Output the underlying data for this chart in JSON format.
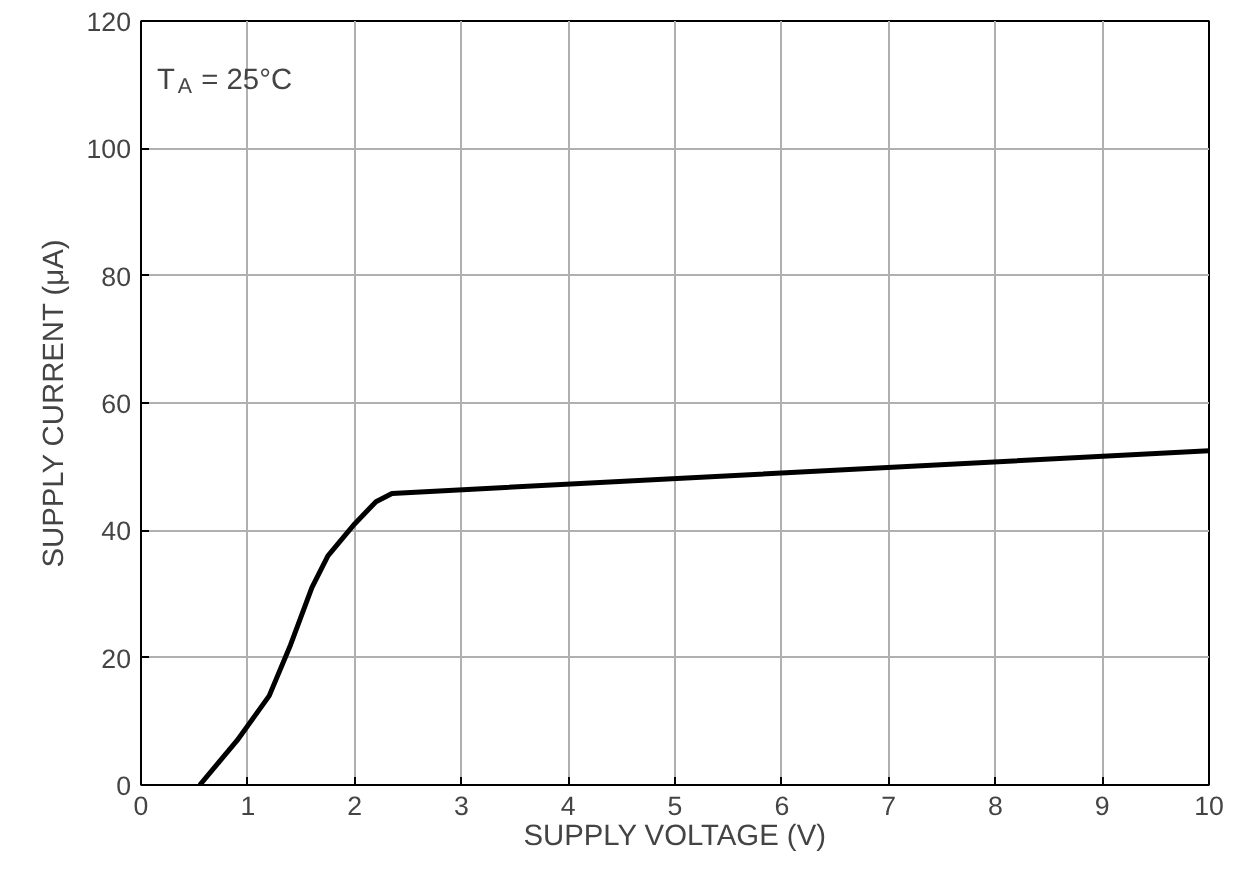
{
  "chart_data": {
    "type": "line",
    "xlabel": "SUPPLY VOLTAGE (V)",
    "ylabel": "SUPPLY CURRENT (μA)",
    "x": [
      0.55,
      0.9,
      1.2,
      1.4,
      1.6,
      1.75,
      2.0,
      2.2,
      2.35,
      10
    ],
    "series": [
      {
        "color": "#000000",
        "values": [
          0,
          7,
          14,
          22,
          31,
          36,
          41,
          44.5,
          45.8,
          52.5
        ]
      }
    ],
    "xlim": [
      0,
      10
    ],
    "ylim": [
      0,
      120
    ],
    "xticks": [
      0,
      1,
      2,
      3,
      4,
      5,
      6,
      7,
      8,
      9,
      10
    ],
    "yticks": [
      0,
      20,
      40,
      60,
      80,
      100,
      120
    ],
    "grid": true,
    "line_style": "solid",
    "annotations": [
      "T$_{A}$ = 25°C"
    ]
  }
}
